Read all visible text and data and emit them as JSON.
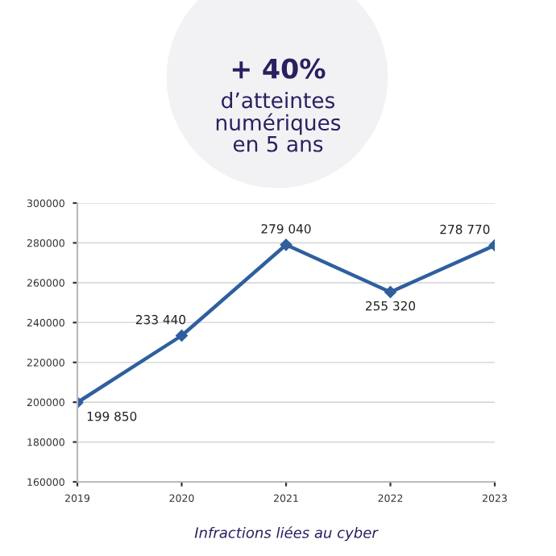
{
  "chart_data": {
    "type": "line",
    "title": "+ 40%",
    "subtitle": "d’atteintes\nnumériques\nen 5 ans",
    "xlabel": "Infractions liées au cyber",
    "x": [
      2019,
      2020,
      2021,
      2022,
      2023
    ],
    "series": [
      {
        "color": "#2f5f9e",
        "values": [
          199850,
          233440,
          279040,
          255320,
          278770
        ],
        "value_labels": [
          "199 850",
          "233 440",
          "279 040",
          "255 320",
          "278 770"
        ]
      }
    ],
    "xlim": [
      2019,
      2023
    ],
    "xticks": [
      2019,
      2020,
      2021,
      2022,
      2023
    ],
    "ylim": [
      160000,
      300000
    ],
    "yticks": [
      160000,
      180000,
      200000,
      220000,
      240000,
      260000,
      280000,
      300000
    ],
    "grid": "y",
    "marker": "diamond",
    "line_style": "solid",
    "legend": false
  }
}
